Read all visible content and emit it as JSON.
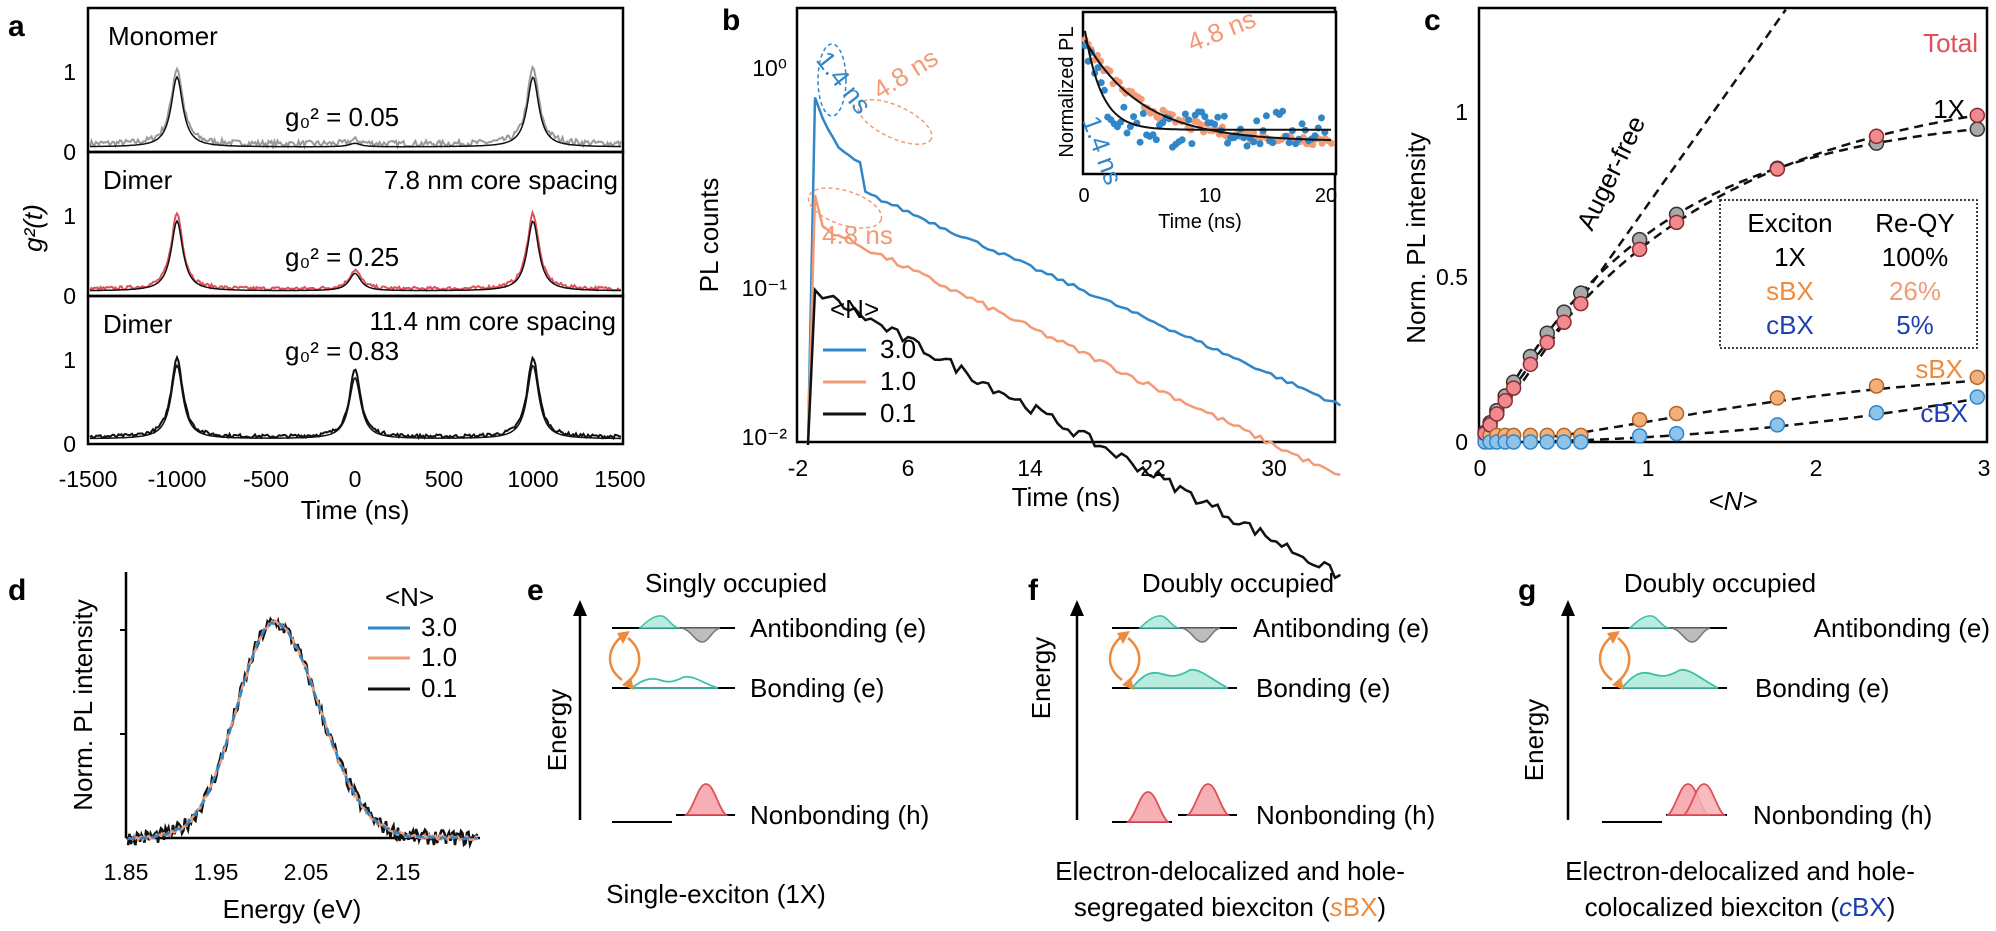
{
  "colors": {
    "black": "#111111",
    "gray": "#9a9a9a",
    "red": "#e0505a",
    "salmon": "#f29b76",
    "orange": "#ee8a3c",
    "blue": "#2f86c8",
    "darkblue": "#1f3fb0",
    "teal": "#3fbfa8",
    "pink": "#f07f86"
  },
  "panel_a": {
    "letter": "a",
    "ylabel": "g²(t)",
    "xlabel": "Time (ns)",
    "x_ticks": [
      "-1500",
      "-1000",
      "-500",
      "0",
      "500",
      "1000",
      "1500"
    ],
    "y_ticks": [
      "0",
      "1"
    ],
    "rows": [
      {
        "label": "Monomer",
        "spacing": "",
        "g0": "g₀² = 0.05"
      },
      {
        "label": "Dimer",
        "spacing": "7.8 nm core spacing",
        "g0": "g₀² = 0.25"
      },
      {
        "label": "Dimer",
        "spacing": "11.4 nm core spacing",
        "g0": "g₀² = 0.83"
      }
    ]
  },
  "panel_b": {
    "letter": "b",
    "ylabel": "PL counts",
    "xlabel": "Time (ns)",
    "x_ticks": [
      "-2",
      "6",
      "14",
      "22",
      "30"
    ],
    "y_ticks": [
      "10⁰",
      "10⁻¹",
      "10⁻²"
    ],
    "legend_title": "<N>",
    "legend": [
      "3.0",
      "1.0",
      "0.1"
    ],
    "annotations": [
      "1.4 ns",
      "4.8 ns",
      "4.8 ns"
    ],
    "inset": {
      "ylabel": "Normalized PL",
      "xlabel": "Time (ns)",
      "x_ticks": [
        "0",
        "10",
        "20"
      ],
      "annotations": [
        "4.8 ns",
        "1.4 ns"
      ]
    }
  },
  "panel_c": {
    "letter": "c",
    "ylabel": "Norm. PL intensity",
    "xlabel": "<N>",
    "x_ticks": [
      "0",
      "1",
      "2",
      "3"
    ],
    "y_ticks": [
      "0",
      "0.5",
      "1"
    ],
    "curve_labels": {
      "auger_free": "Auger-free",
      "total": "Total",
      "one_x": "1X",
      "sbx": "sBX",
      "cbx": "cBX"
    },
    "table": {
      "headers": [
        "Exciton",
        "Re-QY"
      ],
      "rows": [
        [
          "1X",
          "100%"
        ],
        [
          "sBX",
          "26%"
        ],
        [
          "cBX",
          "5%"
        ]
      ]
    }
  },
  "panel_d": {
    "letter": "d",
    "ylabel": "Norm. PL intensity",
    "xlabel": "Energy (eV)",
    "x_ticks": [
      "1.85",
      "1.95",
      "2.05",
      "2.15"
    ],
    "legend_title": "<N>",
    "legend": [
      "3.0",
      "1.0",
      "0.1"
    ]
  },
  "panel_e": {
    "letter": "e",
    "title": "Singly occupied",
    "axis": "Energy",
    "levels": [
      "Antibonding (e)",
      "Bonding (e)",
      "Nonbonding (h)"
    ],
    "caption": "Single-exciton (1X)"
  },
  "panel_f": {
    "letter": "f",
    "title": "Doubly occupied",
    "axis": "Energy",
    "levels": [
      "Antibonding (e)",
      "Bonding (e)",
      "Nonbonding (h)"
    ],
    "caption_line1": "Electron-delocalized and hole-",
    "caption_line2": "segregated biexciton (",
    "caption_em": "s",
    "caption_tail": "BX",
    "caption_close": ")"
  },
  "panel_g": {
    "letter": "g",
    "title": "Doubly occupied",
    "axis": "Energy",
    "levels": [
      "Antibonding (e)",
      "Bonding (e)",
      "Nonbonding (h)"
    ],
    "caption_line1": "Electron-delocalized and hole-",
    "caption_line2": "colocalized biexciton (",
    "caption_em": "c",
    "caption_tail": "BX",
    "caption_close": ")"
  }
}
